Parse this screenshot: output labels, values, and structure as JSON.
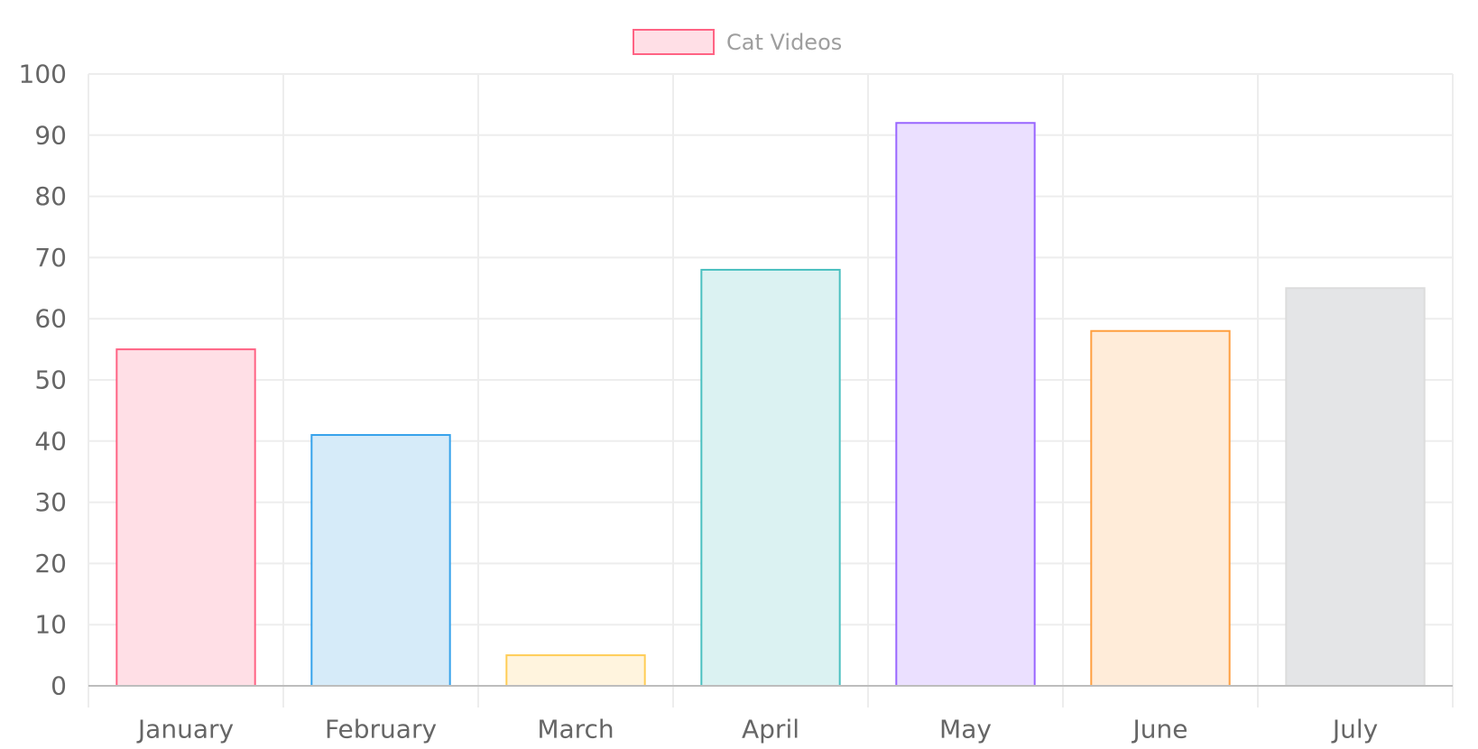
{
  "chart_data": {
    "type": "bar",
    "categories": [
      "January",
      "February",
      "March",
      "April",
      "May",
      "June",
      "July"
    ],
    "series": [
      {
        "name": "Cat Videos",
        "values": [
          55,
          41,
          5,
          68,
          92,
          58,
          65
        ]
      }
    ],
    "ylim": [
      0,
      100
    ],
    "yticks": [
      0,
      10,
      20,
      30,
      40,
      50,
      60,
      70,
      80,
      90,
      100
    ],
    "grid": true,
    "legend_position": "top-center",
    "colors": {
      "bar_fills": [
        "#ffdfe6",
        "#d6ebf9",
        "#fff4de",
        "#dbf2f2",
        "#ebe0ff",
        "#ffecd9",
        "#e4e5e7"
      ],
      "bar_borders": [
        "#ff6384",
        "#36a2eb",
        "#ffcd56",
        "#4bc0c0",
        "#9966ff",
        "#ff9f40",
        "#dcdcdc"
      ],
      "legend_fill": "#ffdfe6",
      "legend_border": "#ff6384",
      "grid": "#ededed",
      "axis": "#bdbdbd"
    }
  }
}
